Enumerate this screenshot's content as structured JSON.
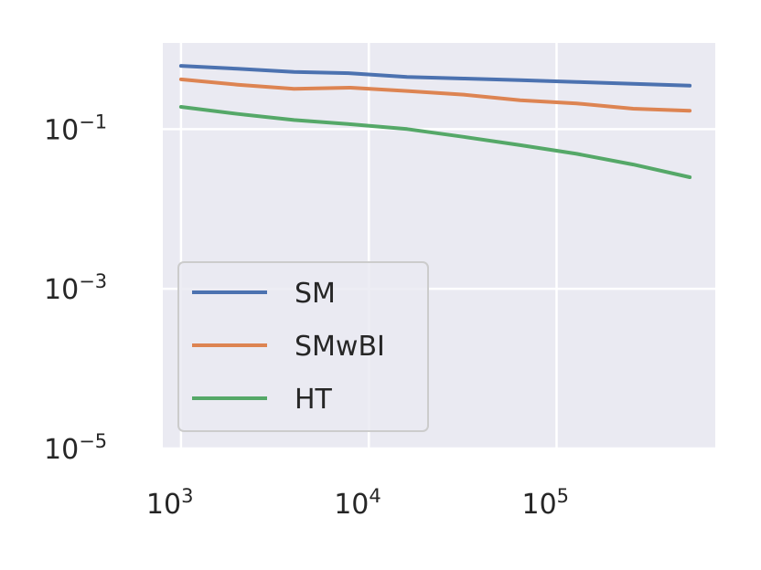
{
  "chart_data": {
    "type": "line",
    "title": "",
    "xlabel": "",
    "ylabel": "",
    "xscale": "log",
    "yscale": "log",
    "xlim": [
      800,
      700000
    ],
    "ylim": [
      1e-05,
      1.2
    ],
    "grid": true,
    "legend_position": "lower-left",
    "x_ticks": [
      {
        "value": 1000,
        "base": "10",
        "exp": "3"
      },
      {
        "value": 10000,
        "base": "10",
        "exp": "4"
      },
      {
        "value": 100000,
        "base": "10",
        "exp": "5"
      }
    ],
    "y_ticks": [
      {
        "value": 0.1,
        "base": "10",
        "exp": "−1"
      },
      {
        "value": 0.001,
        "base": "10",
        "exp": "−3"
      },
      {
        "value": 1e-05,
        "base": "10",
        "exp": "−5"
      }
    ],
    "series": [
      {
        "name": "SM",
        "color": "#4c72b0",
        "x": [
          1000,
          2000,
          4000,
          8000,
          16000,
          32000,
          64000,
          128000,
          256000,
          512000
        ],
        "y": [
          0.62,
          0.57,
          0.52,
          0.5,
          0.45,
          0.43,
          0.41,
          0.39,
          0.37,
          0.35
        ]
      },
      {
        "name": "SMwBI",
        "color": "#dd8452",
        "x": [
          1000,
          2000,
          4000,
          8000,
          16000,
          32000,
          64000,
          128000,
          256000,
          512000
        ],
        "y": [
          0.42,
          0.36,
          0.32,
          0.33,
          0.3,
          0.27,
          0.23,
          0.21,
          0.18,
          0.17
        ]
      },
      {
        "name": "HT",
        "color": "#55a868",
        "x": [
          1000,
          2000,
          4000,
          8000,
          16000,
          32000,
          64000,
          128000,
          256000,
          512000
        ],
        "y": [
          0.19,
          0.155,
          0.13,
          0.115,
          0.1,
          0.08,
          0.063,
          0.049,
          0.036,
          0.025
        ]
      }
    ]
  }
}
